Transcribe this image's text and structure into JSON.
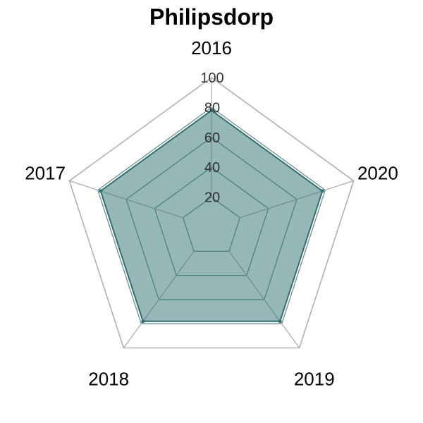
{
  "chart_data": {
    "type": "radar",
    "title": "Philipsdorp",
    "axes": [
      "2016",
      "2017",
      "2018",
      "2019",
      "2020"
    ],
    "rlim": [
      0,
      100
    ],
    "ticks": [
      20,
      40,
      60,
      80,
      100
    ],
    "series": [
      {
        "values": [
          78,
          78,
          78,
          78,
          78
        ],
        "color": "#2e7070",
        "fill": "#2e7070"
      }
    ],
    "grid": true,
    "colors": {
      "grid_outer": "#b0b0b0",
      "grid_inner": "#6f8f8f"
    }
  }
}
